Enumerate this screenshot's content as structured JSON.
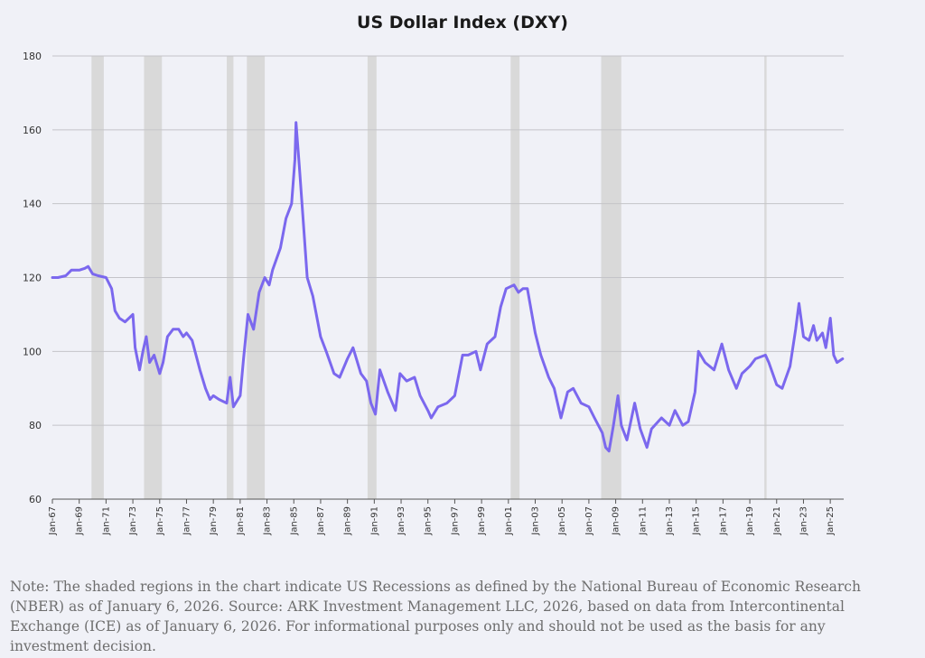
{
  "chart_data": {
    "type": "line",
    "title": "US Dollar Index (DXY)",
    "xlabel": "",
    "ylabel": "",
    "ylim": [
      60,
      180
    ],
    "xlim": [
      "1967-01",
      "2026-01"
    ],
    "y_ticks": [
      60,
      80,
      100,
      120,
      140,
      160,
      180
    ],
    "x_ticks": [
      "Jan-67",
      "Jan-69",
      "Jan-71",
      "Jan-73",
      "Jan-75",
      "Jan-77",
      "Jan-79",
      "Jan-81",
      "Jan-83",
      "Jan-85",
      "Jan-87",
      "Jan-89",
      "Jan-91",
      "Jan-93",
      "Jan-95",
      "Jan-97",
      "Jan-99",
      "Jan-01",
      "Jan-03",
      "Jan-05",
      "Jan-07",
      "Jan-09",
      "Jan-11",
      "Jan-13",
      "Jan-15",
      "Jan-17",
      "Jan-19",
      "Jan-21",
      "Jan-23",
      "Jan-25"
    ],
    "grid": "horizontal",
    "line_color": "#7b68ee",
    "recession_color": "#d9d9d9",
    "recessions": [
      {
        "start": "1969-12",
        "end": "1970-11"
      },
      {
        "start": "1973-11",
        "end": "1975-03"
      },
      {
        "start": "1980-01",
        "end": "1980-07"
      },
      {
        "start": "1981-07",
        "end": "1982-11"
      },
      {
        "start": "1990-07",
        "end": "1991-03"
      },
      {
        "start": "2001-03",
        "end": "2001-11"
      },
      {
        "start": "2007-12",
        "end": "2009-06"
      },
      {
        "start": "2020-02",
        "end": "2020-04"
      }
    ],
    "series": [
      {
        "name": "",
        "x": [
          "1967-01",
          "1967-06",
          "1968-01",
          "1968-06",
          "1969-01",
          "1969-06",
          "1969-09",
          "1970-01",
          "1970-06",
          "1971-01",
          "1971-06",
          "1971-09",
          "1972-01",
          "1972-06",
          "1973-01",
          "1973-03",
          "1973-07",
          "1973-10",
          "1974-01",
          "1974-04",
          "1974-08",
          "1975-01",
          "1975-04",
          "1975-08",
          "1976-01",
          "1976-06",
          "1976-10",
          "1977-01",
          "1977-06",
          "1978-01",
          "1978-06",
          "1978-10",
          "1979-01",
          "1979-06",
          "1980-01",
          "1980-04",
          "1980-07",
          "1981-01",
          "1981-04",
          "1981-08",
          "1982-01",
          "1982-06",
          "1982-11",
          "1983-03",
          "1983-06",
          "1984-01",
          "1984-06",
          "1984-11",
          "1985-02",
          "1985-03",
          "1985-06",
          "1985-09",
          "1986-01",
          "1986-06",
          "1987-01",
          "1987-06",
          "1988-01",
          "1988-06",
          "1989-01",
          "1989-06",
          "1990-01",
          "1990-06",
          "1990-10",
          "1991-02",
          "1991-06",
          "1992-01",
          "1992-08",
          "1992-12",
          "1993-06",
          "1994-01",
          "1994-06",
          "1995-01",
          "1995-04",
          "1995-10",
          "1996-06",
          "1997-01",
          "1997-08",
          "1998-01",
          "1998-08",
          "1998-12",
          "1999-06",
          "2000-01",
          "2000-06",
          "2000-11",
          "2001-06",
          "2001-10",
          "2002-02",
          "2002-06",
          "2003-01",
          "2003-06",
          "2004-01",
          "2004-06",
          "2004-12",
          "2005-06",
          "2005-11",
          "2006-06",
          "2007-01",
          "2007-06",
          "2008-01",
          "2008-04",
          "2008-07",
          "2008-11",
          "2009-03",
          "2009-06",
          "2009-11",
          "2010-06",
          "2010-11",
          "2011-05",
          "2011-09",
          "2012-06",
          "2013-01",
          "2013-06",
          "2014-01",
          "2014-06",
          "2014-12",
          "2015-03",
          "2015-09",
          "2016-05",
          "2016-12",
          "2017-06",
          "2018-01",
          "2018-06",
          "2019-01",
          "2019-06",
          "2020-03",
          "2020-06",
          "2021-01",
          "2021-06",
          "2022-01",
          "2022-06",
          "2022-09",
          "2023-01",
          "2023-06",
          "2023-10",
          "2024-01",
          "2024-06",
          "2024-09",
          "2025-01",
          "2025-04",
          "2025-07",
          "2025-12"
        ],
        "values": [
          120,
          120,
          120.5,
          122,
          122,
          122.5,
          123,
          121,
          120.5,
          120,
          117,
          111,
          109,
          108,
          110,
          101,
          95,
          100,
          104,
          97,
          99,
          94,
          97,
          104,
          106,
          106,
          104,
          105,
          103,
          95,
          90,
          87,
          88,
          87,
          86,
          93,
          85,
          88,
          98,
          110,
          106,
          116,
          120,
          118,
          122,
          128,
          136,
          140,
          152,
          162,
          150,
          137,
          120,
          115,
          104,
          100,
          94,
          93,
          98,
          101,
          94,
          92,
          86,
          83,
          95,
          89,
          84,
          94,
          92,
          93,
          88,
          84,
          82,
          85,
          86,
          88,
          99,
          99,
          100,
          95,
          102,
          104,
          112,
          117,
          118,
          116,
          117,
          117,
          105,
          99,
          93,
          90,
          82,
          89,
          90,
          86,
          85,
          82,
          78,
          74,
          73,
          80,
          88,
          80,
          76,
          86,
          79,
          74,
          79,
          82,
          80,
          84,
          80,
          81,
          89,
          100,
          97,
          95,
          102,
          95,
          90,
          94,
          96,
          98,
          99,
          97,
          91,
          90,
          96,
          106,
          113,
          104,
          103,
          107,
          103,
          105,
          101,
          109,
          99,
          97,
          98
        ]
      }
    ]
  },
  "note": "Note: The shaded regions in the chart indicate US Recessions as defined by the National Bureau of Economic Research (NBER) as of January 6, 2026. Source: ARK Investment Management LLC, 2026, based on data from Intercontinental Exchange (ICE) as of January 6, 2026. For informational purposes only and should not be used as the basis for any investment decision."
}
